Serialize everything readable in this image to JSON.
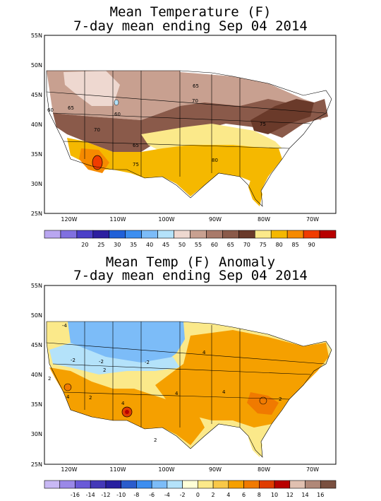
{
  "panels": [
    {
      "title_line1": "Mean Temperature (F)",
      "title_line2": "7-day mean ending Sep 04 2014",
      "lat_labels": [
        "55N",
        "50N",
        "45N",
        "40N",
        "35N",
        "30N",
        "25N"
      ],
      "lon_labels": [
        "120W",
        "110W",
        "100W",
        "90W",
        "80W",
        "70W"
      ],
      "legend_labels": [
        "20",
        "25",
        "30",
        "35",
        "40",
        "45",
        "50",
        "55",
        "60",
        "65",
        "70",
        "75",
        "80",
        "85",
        "90"
      ],
      "legend_colors": [
        "#b9a6f0",
        "#8070e0",
        "#4b3fc8",
        "#2d1fa0",
        "#2060d8",
        "#3c8ef0",
        "#7cbcf8",
        "#b4e2fa",
        "#eed8d0",
        "#c8a090",
        "#a97a6a",
        "#8a5a4a",
        "#6a3a2a",
        "#fbe98a",
        "#f5b800",
        "#f68a00",
        "#f03c00",
        "#b80000"
      ],
      "contour_labels": [
        "65",
        "60",
        "60",
        "70",
        "70",
        "65",
        "75",
        "80",
        "75",
        "65"
      ]
    },
    {
      "title_line1": "Mean Temp (F) Anomaly",
      "title_line2": "7-day mean ending Sep 04 2014",
      "lat_labels": [
        "55N",
        "50N",
        "45N",
        "40N",
        "35N",
        "30N",
        "25N"
      ],
      "lon_labels": [
        "120W",
        "110W",
        "100W",
        "90W",
        "80W",
        "70W"
      ],
      "legend_labels": [
        "-16",
        "-14",
        "-12",
        "-10",
        "-8",
        "-6",
        "-4",
        "-2",
        "0",
        "2",
        "4",
        "6",
        "8",
        "10",
        "12",
        "14",
        "16"
      ],
      "legend_colors": [
        "#c8b8f4",
        "#9a88e8",
        "#6a5ad8",
        "#4438b8",
        "#2820a0",
        "#2a5ccc",
        "#3c8ef0",
        "#7cbcf8",
        "#b4e2fa",
        "#ffffd8",
        "#fbe98a",
        "#f8c848",
        "#f5a000",
        "#f07a00",
        "#e03c00",
        "#b80000",
        "#e0c0b0",
        "#b08878",
        "#7a5040"
      ],
      "contour_labels": [
        "-4",
        "-2",
        "-2",
        "2",
        "-2",
        "4",
        "2",
        "4",
        "4",
        "4",
        "4",
        "2",
        "2",
        "2"
      ]
    }
  ]
}
